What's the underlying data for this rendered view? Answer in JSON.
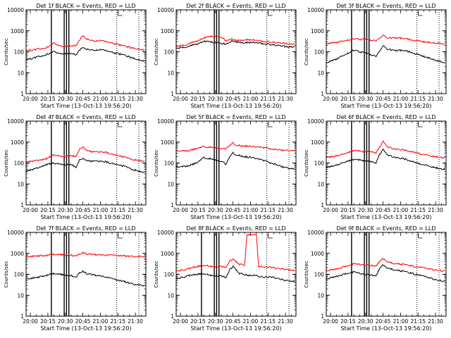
{
  "figure": {
    "background": "#ffffff",
    "colors": {
      "events": "#000000",
      "lld": "#ff0000",
      "frame": "#000000"
    }
  },
  "chart_data": [
    {
      "type": "line",
      "title": "Det 1f BLACK = Events, RED = LLD",
      "xlabel": "Start Time (13-Oct-13 19:56:20)",
      "ylabel": "Counts/sec",
      "y_scale": "log",
      "ylim": [
        1,
        10000
      ],
      "yticks": [
        "1",
        "10",
        "100",
        "1000",
        "10000"
      ],
      "xlim": [
        "19:56:20",
        "21:39:00"
      ],
      "xticks": [
        "20:00",
        "20:15",
        "20:30",
        "20:45",
        "21:00",
        "21:15",
        "21:30"
      ],
      "x": [
        "19:56",
        "20:05",
        "20:14",
        "20:20",
        "20:28",
        "20:36",
        "20:39",
        "20:42",
        "20:45",
        "20:48",
        "20:55",
        "21:03",
        "21:10",
        "21:20",
        "21:30",
        "21:38"
      ],
      "series": [
        {
          "name": "Events",
          "color": "#000000",
          "values": [
            40,
            55,
            75,
            100,
            80,
            85,
            65,
            120,
            160,
            130,
            120,
            125,
            95,
            70,
            45,
            35
          ]
        },
        {
          "name": "LLD",
          "color": "#ff0000",
          "values": [
            110,
            130,
            160,
            250,
            180,
            200,
            180,
            350,
            600,
            400,
            330,
            340,
            260,
            190,
            140,
            120
          ]
        }
      ],
      "vlines_solid": [
        "20:18",
        "20:29",
        "20:31",
        "20:33"
      ],
      "vlines_dotted": [
        "21:14",
        "21:33"
      ]
    },
    {
      "type": "line",
      "title": "Det 2f BLACK = Events, RED = LLD",
      "xlabel": "Start Time (13-Oct-13 19:56:20)",
      "ylabel": "Counts/sec",
      "y_scale": "log",
      "ylim": [
        1,
        10000
      ],
      "yticks": [
        "1",
        "10",
        "100",
        "1000",
        "10000"
      ],
      "xlim": [
        "19:56:20",
        "21:39:00"
      ],
      "xticks": [
        "20:00",
        "20:15",
        "20:30",
        "20:45",
        "21:00",
        "21:15",
        "21:30"
      ],
      "x": [
        "19:56",
        "20:05",
        "20:14",
        "20:20",
        "20:28",
        "20:36",
        "20:39",
        "20:42",
        "20:45",
        "20:48",
        "20:55",
        "21:03",
        "21:10",
        "21:20",
        "21:30",
        "21:38"
      ],
      "series": [
        {
          "name": "Events",
          "color": "#000000",
          "values": [
            150,
            170,
            230,
            330,
            280,
            250,
            230,
            280,
            330,
            300,
            260,
            290,
            250,
            210,
            180,
            170
          ]
        },
        {
          "name": "LLD",
          "color": "#ff0000",
          "values": [
            180,
            220,
            320,
            480,
            550,
            480,
            330,
            380,
            400,
            350,
            360,
            380,
            320,
            280,
            250,
            230
          ]
        }
      ],
      "vlines_solid": [
        "20:29",
        "20:31",
        "20:33"
      ],
      "vlines_dotted": [
        "21:14",
        "21:33"
      ]
    },
    {
      "type": "line",
      "title": "Det 3f BLACK = Events, RED = LLD",
      "xlabel": "Start Time (13-Oct-13 19:56:20)",
      "ylabel": "Counts/sec",
      "y_scale": "log",
      "ylim": [
        1,
        10000
      ],
      "yticks": [
        "1",
        "10",
        "100",
        "1000",
        "10000"
      ],
      "xlim": [
        "19:56:20",
        "21:39:00"
      ],
      "xticks": [
        "20:00",
        "20:15",
        "20:30",
        "20:45",
        "21:00",
        "21:15",
        "21:30"
      ],
      "x": [
        "19:56",
        "20:05",
        "20:14",
        "20:20",
        "20:28",
        "20:36",
        "20:39",
        "20:42",
        "20:45",
        "20:48",
        "20:55",
        "21:03",
        "21:10",
        "21:20",
        "21:30",
        "21:38"
      ],
      "series": [
        {
          "name": "Events",
          "color": "#000000",
          "values": [
            30,
            45,
            80,
            120,
            90,
            70,
            60,
            100,
            200,
            140,
            110,
            120,
            90,
            60,
            40,
            30
          ]
        },
        {
          "name": "LLD",
          "color": "#ff0000",
          "values": [
            250,
            280,
            350,
            420,
            380,
            360,
            330,
            420,
            650,
            470,
            440,
            450,
            360,
            300,
            260,
            240
          ]
        }
      ],
      "vlines_solid": [
        "20:18",
        "20:29",
        "20:31",
        "20:33"
      ],
      "vlines_dotted": [
        "21:14",
        "21:33"
      ]
    },
    {
      "type": "line",
      "title": "Det 4f BLACK = Events, RED = LLD",
      "xlabel": "Start Time (13-Oct-13 19:56:20)",
      "ylabel": "Counts/sec",
      "y_scale": "log",
      "ylim": [
        1,
        10000
      ],
      "yticks": [
        "1",
        "10",
        "100",
        "1000",
        "10000"
      ],
      "xlim": [
        "19:56:20",
        "21:39:00"
      ],
      "xticks": [
        "20:00",
        "20:15",
        "20:30",
        "20:45",
        "21:00",
        "21:15",
        "21:30"
      ],
      "x": [
        "19:56",
        "20:05",
        "20:14",
        "20:20",
        "20:28",
        "20:36",
        "20:39",
        "20:42",
        "20:45",
        "20:48",
        "20:55",
        "21:03",
        "21:10",
        "21:20",
        "21:30",
        "21:38"
      ],
      "series": [
        {
          "name": "Events",
          "color": "#000000",
          "values": [
            40,
            55,
            85,
            100,
            85,
            80,
            60,
            130,
            170,
            130,
            120,
            120,
            95,
            70,
            45,
            35
          ]
        },
        {
          "name": "LLD",
          "color": "#ff0000",
          "values": [
            110,
            130,
            160,
            250,
            200,
            220,
            200,
            420,
            600,
            400,
            330,
            340,
            260,
            190,
            140,
            120
          ]
        }
      ],
      "vlines_solid": [
        "20:18",
        "20:29",
        "20:31",
        "20:33"
      ],
      "vlines_dotted": [
        "21:14",
        "21:33"
      ]
    },
    {
      "type": "line",
      "title": "Det 5f BLACK = Events, RED = LLD",
      "xlabel": "Start Time (13-Oct-13 19:56:20)",
      "ylabel": "Counts/sec",
      "y_scale": "log",
      "ylim": [
        1,
        10000
      ],
      "yticks": [
        "1",
        "10",
        "100",
        "1000",
        "10000"
      ],
      "xlim": [
        "19:56:20",
        "21:39:00"
      ],
      "xticks": [
        "20:00",
        "20:15",
        "20:30",
        "20:45",
        "21:00",
        "21:15",
        "21:30"
      ],
      "x": [
        "19:56",
        "20:05",
        "20:14",
        "20:20",
        "20:28",
        "20:36",
        "20:39",
        "20:42",
        "20:45",
        "20:48",
        "20:55",
        "21:03",
        "21:10",
        "21:20",
        "21:30",
        "21:38"
      ],
      "series": [
        {
          "name": "Events",
          "color": "#000000",
          "values": [
            60,
            70,
            100,
            180,
            150,
            120,
            80,
            200,
            300,
            250,
            200,
            180,
            140,
            90,
            60,
            50
          ]
        },
        {
          "name": "LLD",
          "color": "#ff0000",
          "values": [
            350,
            380,
            480,
            600,
            550,
            500,
            450,
            700,
            900,
            720,
            650,
            620,
            550,
            450,
            400,
            380
          ]
        }
      ],
      "vlines_solid": [
        "20:29",
        "20:31",
        "20:33"
      ],
      "vlines_dotted": [
        "21:14",
        "21:33"
      ]
    },
    {
      "type": "line",
      "title": "Det 6f BLACK = Events, RED = LLD",
      "xlabel": "Start Time (13-Oct-13 19:56:20)",
      "ylabel": "Counts/sec",
      "y_scale": "log",
      "ylim": [
        1,
        10000
      ],
      "yticks": [
        "1",
        "10",
        "100",
        "1000",
        "10000"
      ],
      "xlim": [
        "19:56:20",
        "21:39:00"
      ],
      "xticks": [
        "20:00",
        "20:15",
        "20:30",
        "20:45",
        "21:00",
        "21:15",
        "21:30"
      ],
      "x": [
        "19:56",
        "20:05",
        "20:14",
        "20:20",
        "20:28",
        "20:36",
        "20:39",
        "20:42",
        "20:45",
        "20:48",
        "20:55",
        "21:03",
        "21:10",
        "21:20",
        "21:30",
        "21:38"
      ],
      "series": [
        {
          "name": "Events",
          "color": "#000000",
          "values": [
            60,
            80,
            120,
            150,
            130,
            110,
            100,
            250,
            450,
            250,
            180,
            160,
            120,
            80,
            60,
            50
          ]
        },
        {
          "name": "LLD",
          "color": "#ff0000",
          "values": [
            180,
            220,
            300,
            400,
            350,
            330,
            300,
            550,
            1100,
            600,
            450,
            420,
            350,
            250,
            200,
            180
          ]
        }
      ],
      "vlines_solid": [
        "20:18",
        "20:29",
        "20:31",
        "20:33"
      ],
      "vlines_dotted": [
        "21:14",
        "21:33"
      ]
    },
    {
      "type": "line",
      "title": "Det 7f BLACK = Events, RED = LLD",
      "xlabel": "Start Time (13-Oct-13 19:56:20)",
      "ylabel": "Counts/sec",
      "y_scale": "log",
      "ylim": [
        1,
        10000
      ],
      "yticks": [
        "1",
        "10",
        "100",
        "1000",
        "10000"
      ],
      "xlim": [
        "19:56:20",
        "21:39:00"
      ],
      "xticks": [
        "20:00",
        "20:15",
        "20:30",
        "20:45",
        "21:00",
        "21:15",
        "21:30"
      ],
      "x": [
        "19:56",
        "20:05",
        "20:14",
        "20:20",
        "20:28",
        "20:36",
        "20:39",
        "20:42",
        "20:45",
        "20:48",
        "20:55",
        "21:03",
        "21:10",
        "21:20",
        "21:30",
        "21:38"
      ],
      "series": [
        {
          "name": "Events",
          "color": "#000000",
          "values": [
            60,
            70,
            90,
            110,
            95,
            85,
            70,
            120,
            140,
            110,
            90,
            80,
            60,
            45,
            32,
            28
          ]
        },
        {
          "name": "LLD",
          "color": "#ff0000",
          "values": [
            700,
            750,
            800,
            900,
            850,
            800,
            750,
            900,
            1100,
            950,
            850,
            850,
            800,
            750,
            700,
            700
          ]
        }
      ],
      "vlines_solid": [
        "20:18",
        "20:29",
        "20:31",
        "20:33"
      ],
      "vlines_dotted": [
        "21:14",
        "21:33"
      ]
    },
    {
      "type": "line",
      "title": "Det 8f BLACK = Events, RED = LLD",
      "xlabel": "Start Time (13-Oct-13 19:56:20)",
      "ylabel": "Counts/sec",
      "y_scale": "log",
      "ylim": [
        1,
        10000
      ],
      "yticks": [
        "1",
        "10",
        "100",
        "1000",
        "10000"
      ],
      "xlim": [
        "19:56:20",
        "21:39:00"
      ],
      "xticks": [
        "20:00",
        "20:15",
        "20:30",
        "20:45",
        "21:00",
        "21:15",
        "21:30"
      ],
      "x": [
        "19:56",
        "20:05",
        "20:14",
        "20:20",
        "20:28",
        "20:36",
        "20:39",
        "20:42",
        "20:45",
        "20:50",
        "20:55",
        "20:57",
        "21:05",
        "21:07",
        "21:12",
        "21:20",
        "21:30",
        "21:38"
      ],
      "series": [
        {
          "name": "Events",
          "color": "#000000",
          "values": [
            60,
            80,
            100,
            110,
            85,
            80,
            70,
            150,
            250,
            110,
            100,
            90,
            90,
            80,
            75,
            70,
            50,
            45
          ]
        },
        {
          "name": "LLD",
          "color": "#ff0000",
          "values": [
            140,
            170,
            230,
            280,
            230,
            230,
            220,
            400,
            550,
            300,
            280,
            8000,
            8000,
            250,
            230,
            200,
            170,
            150
          ]
        }
      ],
      "vlines_solid": [
        "20:18",
        "20:29",
        "20:31",
        "20:33"
      ],
      "vlines_dotted": [
        "21:14",
        "21:33"
      ]
    },
    {
      "type": "line",
      "title": "Det 9f BLACK = Events, RED = LLD",
      "xlabel": "Start Time (13-Oct-13 19:56:20)",
      "ylabel": "Counts/sec",
      "y_scale": "log",
      "ylim": [
        1,
        10000
      ],
      "yticks": [
        "1",
        "10",
        "100",
        "1000",
        "10000"
      ],
      "xlim": [
        "19:56:20",
        "21:39:00"
      ],
      "xticks": [
        "20:00",
        "20:15",
        "20:30",
        "20:45",
        "21:00",
        "21:15",
        "21:30"
      ],
      "x": [
        "19:56",
        "20:05",
        "20:14",
        "20:20",
        "20:28",
        "20:36",
        "20:39",
        "20:42",
        "20:45",
        "20:48",
        "20:55",
        "21:03",
        "21:10",
        "21:20",
        "21:30",
        "21:38"
      ],
      "series": [
        {
          "name": "Events",
          "color": "#000000",
          "values": [
            60,
            80,
            110,
            130,
            100,
            90,
            85,
            180,
            300,
            200,
            160,
            140,
            110,
            80,
            55,
            45
          ]
        },
        {
          "name": "LLD",
          "color": "#ff0000",
          "values": [
            150,
            180,
            250,
            320,
            280,
            260,
            250,
            400,
            600,
            400,
            320,
            300,
            250,
            200,
            160,
            140
          ]
        }
      ],
      "vlines_solid": [
        "20:18",
        "20:29",
        "20:31",
        "20:33"
      ],
      "vlines_dotted": [
        "21:14",
        "21:33"
      ]
    }
  ]
}
